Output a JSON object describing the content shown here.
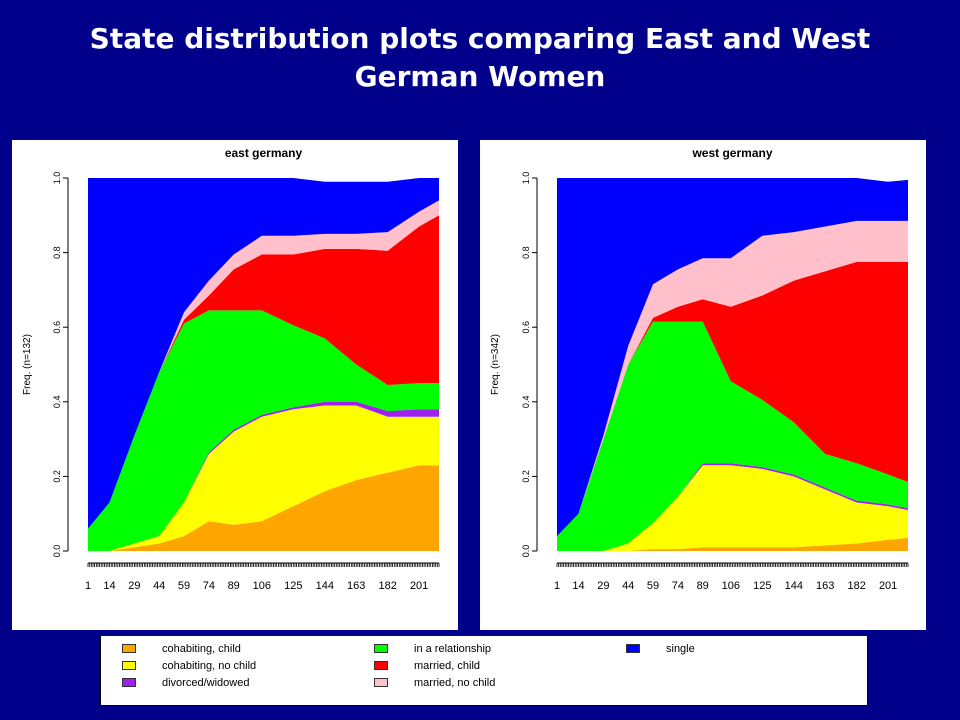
{
  "slide": {
    "title_line1": "State distribution plots comparing East and West",
    "title_line2": "German Women"
  },
  "chart_data": [
    {
      "type": "area",
      "stacked": true,
      "title": "east germany",
      "ylabel": "Freq. (n=132)",
      "ylim": [
        0,
        1
      ],
      "yticks": [
        "0.0",
        "0.2",
        "0.4",
        "0.6",
        "0.8",
        "1.0"
      ],
      "xticks": [
        "1",
        "14",
        "29",
        "44",
        "59",
        "74",
        "89",
        "106",
        "125",
        "144",
        "163",
        "182",
        "201"
      ],
      "x": [
        1,
        14,
        29,
        44,
        59,
        74,
        89,
        106,
        125,
        144,
        163,
        182,
        201,
        213
      ],
      "series": [
        {
          "name": "cohabiting, child",
          "values": [
            0,
            0,
            0.01,
            0.02,
            0.04,
            0.08,
            0.07,
            0.08,
            0.12,
            0.16,
            0.19,
            0.21,
            0.23,
            0.23
          ]
        },
        {
          "name": "cohabiting, no child",
          "values": [
            0,
            0,
            0.01,
            0.02,
            0.09,
            0.18,
            0.25,
            0.28,
            0.26,
            0.23,
            0.2,
            0.15,
            0.13,
            0.13
          ]
        },
        {
          "name": "divorced/widowed",
          "values": [
            0,
            0,
            0,
            0,
            0,
            0.005,
            0.005,
            0.005,
            0.005,
            0.01,
            0.01,
            0.015,
            0.02,
            0.02
          ]
        },
        {
          "name": "in a relationship",
          "values": [
            0.06,
            0.13,
            0.29,
            0.44,
            0.48,
            0.38,
            0.32,
            0.28,
            0.22,
            0.17,
            0.1,
            0.07,
            0.07,
            0.07
          ]
        },
        {
          "name": "married, child",
          "values": [
            0,
            0,
            0,
            0,
            0.01,
            0.04,
            0.11,
            0.15,
            0.19,
            0.24,
            0.31,
            0.36,
            0.42,
            0.45
          ]
        },
        {
          "name": "married, no child",
          "values": [
            0,
            0,
            0,
            0,
            0.02,
            0.04,
            0.04,
            0.05,
            0.05,
            0.04,
            0.04,
            0.05,
            0.04,
            0.04
          ]
        },
        {
          "name": "single",
          "values": [
            0.94,
            0.87,
            0.69,
            0.52,
            0.36,
            0.275,
            0.205,
            0.155,
            0.155,
            0.14,
            0.14,
            0.135,
            0.09,
            0.06
          ]
        }
      ]
    },
    {
      "type": "area",
      "stacked": true,
      "title": "west germany",
      "ylabel": "Freq. (n=342)",
      "ylim": [
        0,
        1
      ],
      "yticks": [
        "0.0",
        "0.2",
        "0.4",
        "0.6",
        "0.8",
        "1.0"
      ],
      "xticks": [
        "1",
        "14",
        "29",
        "44",
        "59",
        "74",
        "89",
        "106",
        "125",
        "144",
        "163",
        "182",
        "201"
      ],
      "x": [
        1,
        14,
        29,
        44,
        59,
        74,
        89,
        106,
        125,
        144,
        163,
        182,
        201,
        213
      ],
      "series": [
        {
          "name": "cohabiting, child",
          "values": [
            0,
            0,
            0,
            0,
            0.005,
            0.005,
            0.01,
            0.01,
            0.01,
            0.01,
            0.015,
            0.02,
            0.03,
            0.035
          ]
        },
        {
          "name": "cohabiting, no child",
          "values": [
            0,
            0,
            0,
            0.02,
            0.07,
            0.14,
            0.22,
            0.22,
            0.21,
            0.19,
            0.15,
            0.11,
            0.09,
            0.075
          ]
        },
        {
          "name": "divorced/widowed",
          "values": [
            0,
            0,
            0,
            0,
            0,
            0,
            0.005,
            0.005,
            0.005,
            0.005,
            0.005,
            0.005,
            0.005,
            0.005
          ]
        },
        {
          "name": "in a relationship",
          "values": [
            0.04,
            0.1,
            0.3,
            0.48,
            0.54,
            0.47,
            0.38,
            0.22,
            0.18,
            0.14,
            0.09,
            0.1,
            0.08,
            0.07
          ]
        },
        {
          "name": "married, child",
          "values": [
            0,
            0,
            0,
            0,
            0.01,
            0.04,
            0.06,
            0.2,
            0.28,
            0.38,
            0.49,
            0.54,
            0.57,
            0.59
          ]
        },
        {
          "name": "married, no child",
          "values": [
            0,
            0,
            0.01,
            0.05,
            0.09,
            0.1,
            0.11,
            0.13,
            0.16,
            0.13,
            0.12,
            0.11,
            0.11,
            0.11
          ]
        },
        {
          "name": "single",
          "values": [
            0.96,
            0.9,
            0.69,
            0.45,
            0.285,
            0.245,
            0.215,
            0.215,
            0.155,
            0.145,
            0.13,
            0.115,
            0.105,
            0.11
          ]
        }
      ]
    }
  ],
  "colors": {
    "cohabiting, child": "#FFA500",
    "cohabiting, no child": "#FFFF00",
    "divorced/widowed": "#A020F0",
    "in a relationship": "#00FF00",
    "married, child": "#FF0000",
    "married, no child": "#FFC0CB",
    "single": "#0000FF"
  },
  "legend": {
    "items": [
      {
        "label": "cohabiting, child",
        "color": "#FFA500"
      },
      {
        "label": "cohabiting, no child",
        "color": "#FFFF00"
      },
      {
        "label": "divorced/widowed",
        "color": "#A020F0"
      },
      {
        "label": "in a relationship",
        "color": "#00FF00"
      },
      {
        "label": "married, child",
        "color": "#FF0000"
      },
      {
        "label": "married, no child",
        "color": "#FFC0CB"
      },
      {
        "label": "single",
        "color": "#0000FF"
      }
    ]
  }
}
